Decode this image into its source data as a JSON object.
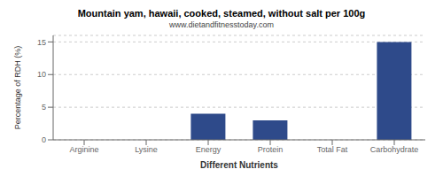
{
  "chart_data": {
    "type": "bar",
    "title": "Mountain yam, hawaii, cooked, steamed, without salt per 100g",
    "subtitle": "www.dietandfitnesstoday.com",
    "xlabel": "Different Nutrients",
    "ylabel": "Percentage of RDH (%)",
    "categories": [
      "Arginine",
      "Lysine",
      "Energy",
      "Protein",
      "Total Fat",
      "Carbohydrate"
    ],
    "values": [
      0.0,
      0.0,
      4.0,
      3.0,
      0.0,
      15.0
    ],
    "color": "#2e4a8a",
    "ylim": [
      0,
      16
    ],
    "yticks": [
      0,
      5,
      10,
      15
    ],
    "grid": true
  }
}
